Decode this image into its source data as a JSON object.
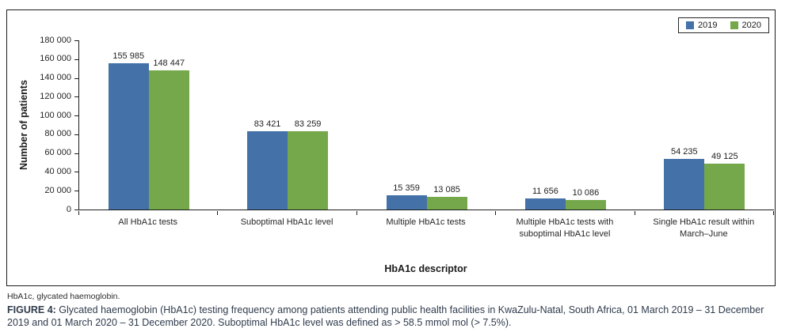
{
  "figure": {
    "footnote": "HbA1c, glycated haemoglobin.",
    "caption_label": "FIGURE 4:",
    "caption_text": " Glycated haemoglobin (HbA1c) testing frequency among patients attending public health facilities in KwaZulu-Natal, South Africa, 01 March 2019 – 31 December 2019 and 01 March 2020 – 31 December 2020. Suboptimal HbA1c level was defined as > 58.5 mmol mol (> 7.5%)."
  },
  "chart_data": {
    "type": "bar",
    "title": "",
    "xlabel": "HbA1c descriptor",
    "ylabel": "Number of patients",
    "ylim": [
      0,
      180000
    ],
    "grid": false,
    "legend_position": "top-right",
    "categories": [
      "All HbA1c tests",
      "Suboptimal HbA1c level",
      "Multiple HbA1c tests",
      "Multiple HbA1c tests with suboptimal HbA1c level",
      "Single HbA1c result within March–June"
    ],
    "series": [
      {
        "name": "2019",
        "color": "#4472a8",
        "values": [
          155985,
          83421,
          15359,
          11656,
          54235
        ],
        "value_labels": [
          "155 985",
          "83 421",
          "15 359",
          "11 656",
          "54 235"
        ]
      },
      {
        "name": "2020",
        "color": "#74a84a",
        "values": [
          148447,
          83259,
          13085,
          10086,
          49125
        ],
        "value_labels": [
          "148 447",
          "83 259",
          "13 085",
          "10 086",
          "49 125"
        ]
      }
    ],
    "y_tick_values": [
      0,
      20000,
      40000,
      60000,
      80000,
      100000,
      120000,
      140000,
      160000,
      180000
    ],
    "y_tick_labels": [
      "0",
      "20 000",
      "40 000",
      "60 000",
      "80 000",
      "100 000",
      "120 000",
      "140 000",
      "160 000",
      "180 000"
    ]
  }
}
